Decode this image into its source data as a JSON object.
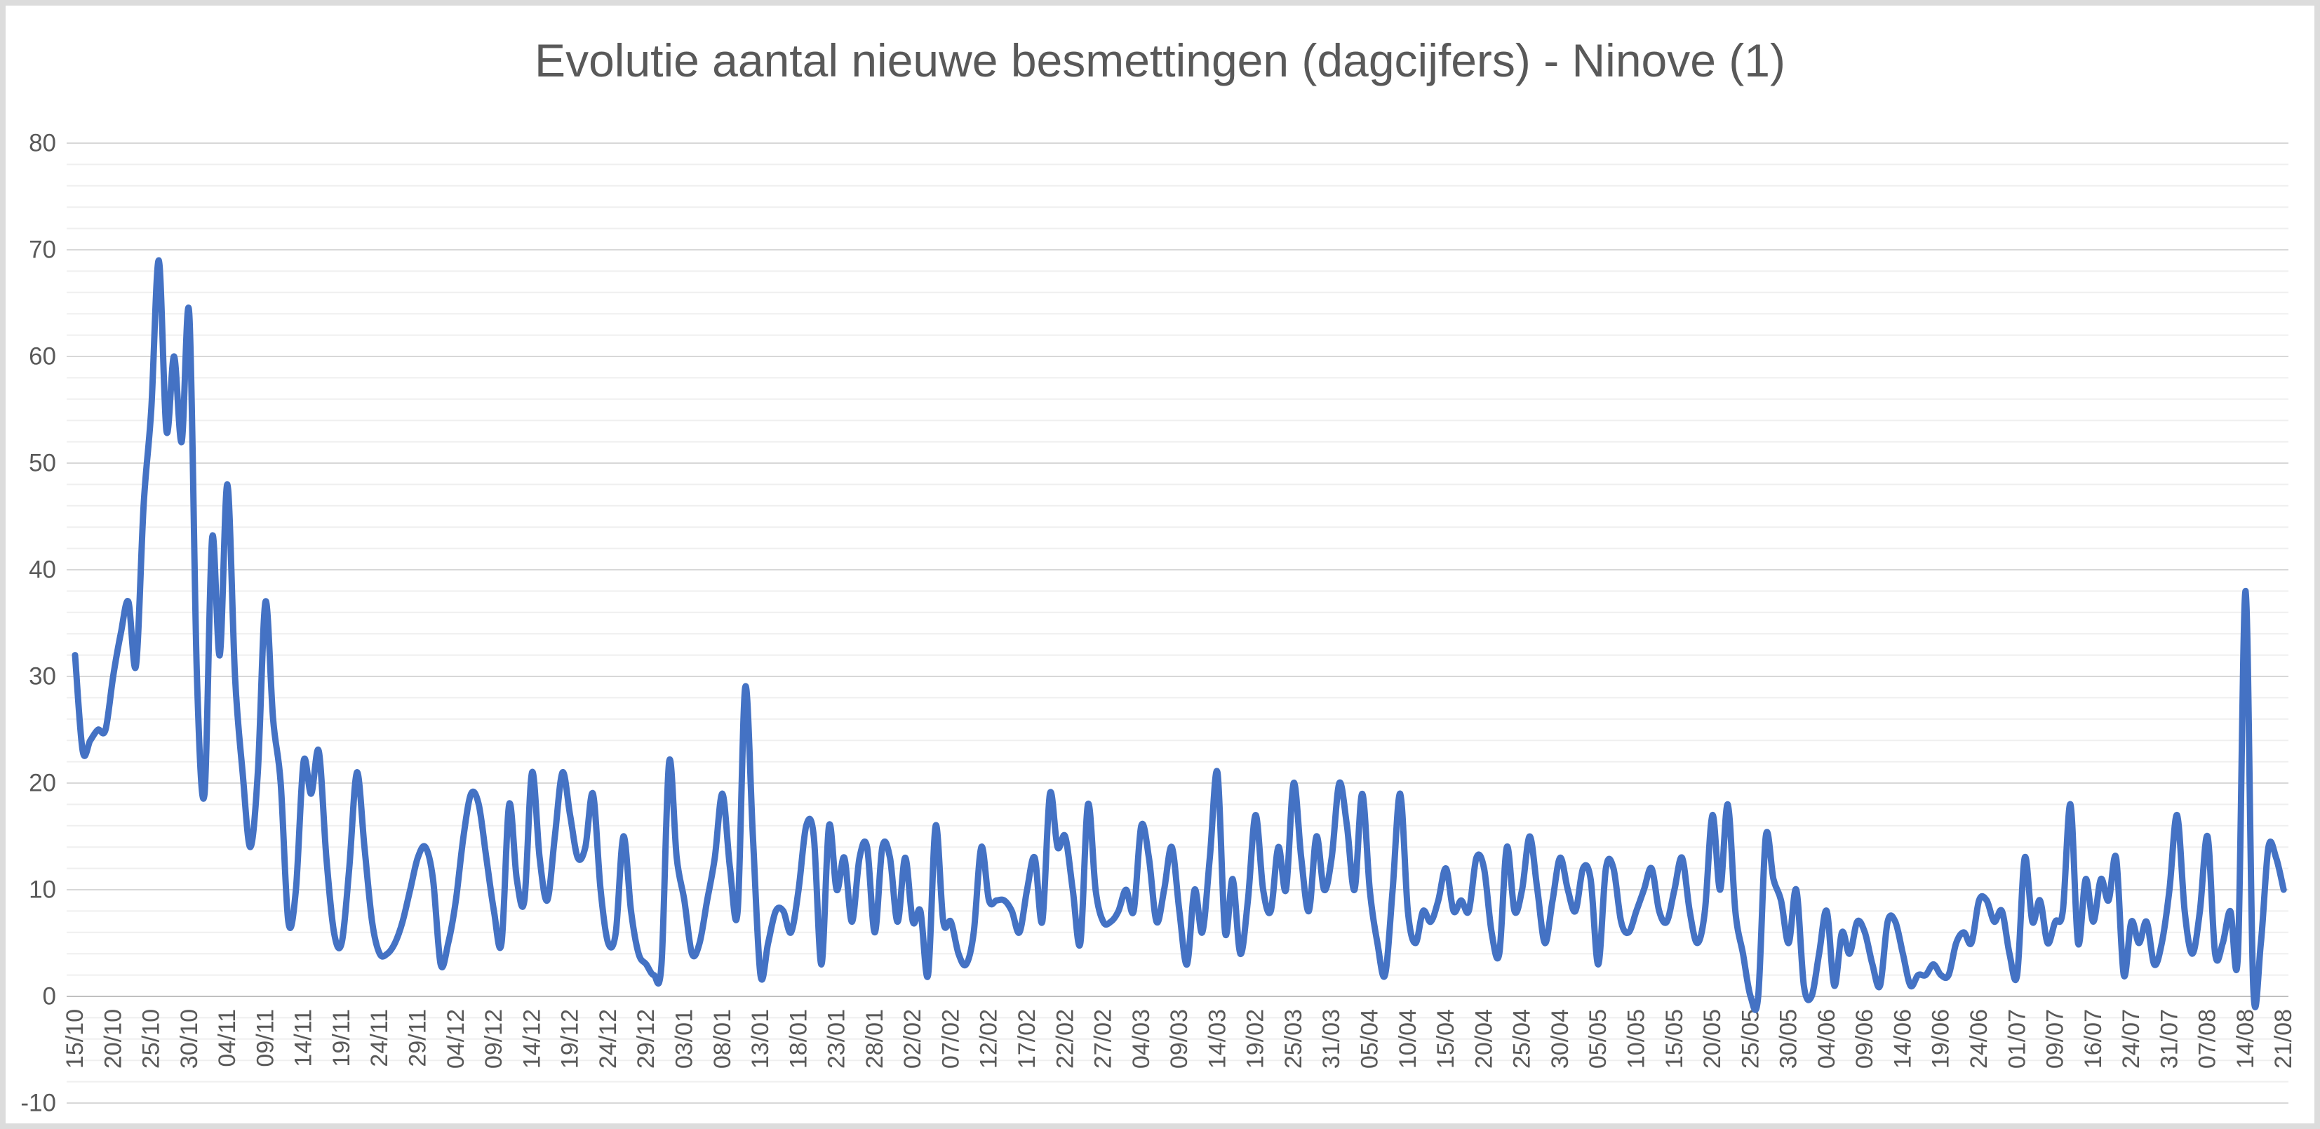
{
  "title": "Evolutie aantal nieuwe besmettingen (dagcijfers) - Ninove (1)",
  "colors": {
    "title": "#595959",
    "tick_label": "#595959",
    "frame_border": "#dcdcdc",
    "grid_major": "#d8d8d8",
    "grid_minor": "#efefef",
    "axis_line": "#c0c0c0",
    "series": "#4472c4",
    "background": "#ffffff"
  },
  "chart_data": {
    "type": "line",
    "title": "Evolutie aantal nieuwe besmettingen (dagcijfers) - Ninove (1)",
    "xlabel": "",
    "ylabel": "",
    "ylim": [
      -10,
      80
    ],
    "y_ticks": [
      80,
      70,
      60,
      50,
      40,
      30,
      20,
      10,
      0,
      -10
    ],
    "y_minor_step": 2,
    "grid": "horizontal-only",
    "legend": "none",
    "smooth": true,
    "x_label_every": 5,
    "x_tick_labels": [
      "15/10",
      "20/10",
      "25/10",
      "30/10",
      "04/11",
      "09/11",
      "14/11",
      "19/11",
      "24/11",
      "29/11",
      "04/12",
      "09/12",
      "14/12",
      "19/12",
      "24/12",
      "29/12",
      "03/01",
      "08/01",
      "13/01",
      "18/01",
      "23/01",
      "28/01",
      "02/02",
      "07/02",
      "12/02",
      "17/02",
      "22/02",
      "27/02",
      "04/03",
      "09/03",
      "14/03",
      "19/02",
      "25/03",
      "31/03",
      "05/04",
      "10/04",
      "15/04",
      "20/04",
      "25/04",
      "30/04",
      "05/05",
      "10/05",
      "15/05",
      "20/05",
      "25/05",
      "30/05",
      "04/06",
      "09/06",
      "14/06",
      "19/06",
      "24/06",
      "01/07",
      "09/07",
      "16/07",
      "24/07",
      "31/07",
      "07/08",
      "14/08",
      "21/08"
    ],
    "series": [
      {
        "name": "dagcijfers",
        "color": "#4472c4",
        "values": [
          32,
          23,
          24,
          25,
          25,
          30,
          34,
          37,
          31,
          46,
          55,
          69,
          53,
          60,
          52,
          64,
          30,
          19,
          43,
          32,
          48,
          30,
          21,
          14,
          21,
          37,
          26,
          20,
          7,
          10,
          22,
          19,
          23,
          13,
          6,
          5,
          12,
          21,
          14,
          7,
          4,
          4,
          5,
          7,
          10,
          13,
          14,
          11,
          3,
          5,
          9,
          15,
          19,
          18,
          13,
          8,
          5,
          18,
          11,
          9,
          21,
          13,
          9,
          15,
          21,
          17,
          13,
          14,
          19,
          10,
          5,
          6,
          15,
          8,
          4,
          3,
          2,
          3,
          22,
          13,
          9,
          4,
          5,
          9,
          13,
          19,
          12,
          8,
          29,
          15,
          2,
          5,
          8,
          8,
          6,
          10,
          16,
          15,
          3,
          16,
          10,
          13,
          7,
          13,
          14,
          6,
          14,
          13,
          7,
          13,
          7,
          8,
          2,
          16,
          7,
          7,
          4,
          3,
          6,
          14,
          9,
          9,
          9,
          8,
          6,
          10,
          13,
          7,
          19,
          14,
          15,
          10,
          5,
          18,
          10,
          7,
          7,
          8,
          10,
          8,
          16,
          13,
          7,
          10,
          14,
          8,
          3,
          10,
          6,
          13,
          21,
          6,
          11,
          4,
          9,
          17,
          10,
          8,
          14,
          10,
          20,
          13,
          8,
          15,
          10,
          13,
          20,
          16,
          10,
          19,
          10,
          5,
          2,
          10,
          19,
          8,
          5,
          8,
          7,
          9,
          12,
          8,
          9,
          8,
          13,
          12,
          6,
          4,
          14,
          8,
          10,
          15,
          10,
          5,
          9,
          13,
          10,
          8,
          12,
          11,
          3,
          12,
          12,
          7,
          6,
          8,
          10,
          12,
          8,
          7,
          10,
          13,
          8,
          5,
          8,
          17,
          10,
          18,
          8,
          4,
          0,
          0,
          15,
          11,
          9,
          5,
          10,
          1,
          0,
          4,
          8,
          1,
          6,
          4,
          7,
          6,
          3,
          1,
          7,
          7,
          4,
          1,
          2,
          2,
          3,
          2,
          2,
          5,
          6,
          5,
          9,
          9,
          7,
          8,
          4,
          2,
          13,
          7,
          9,
          5,
          7,
          8,
          18,
          5,
          11,
          7,
          11,
          9,
          13,
          2,
          7,
          5,
          7,
          3,
          5,
          10,
          17,
          8,
          4,
          8,
          15,
          4,
          5,
          8,
          4,
          38,
          1,
          5,
          14,
          13,
          10
        ]
      }
    ]
  }
}
